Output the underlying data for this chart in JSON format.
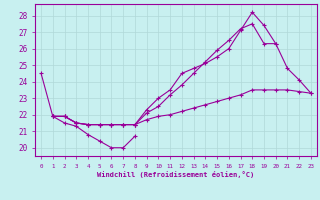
{
  "xlabel": "Windchill (Refroidissement éolien,°C)",
  "bg_color": "#c8f0f0",
  "grid_color": "#b0d8d8",
  "line_color": "#990099",
  "x_ticks": [
    0,
    1,
    2,
    3,
    4,
    5,
    6,
    7,
    8,
    9,
    10,
    11,
    12,
    13,
    14,
    15,
    16,
    17,
    18,
    19,
    20,
    21,
    22,
    23
  ],
  "ylim": [
    19.5,
    28.7
  ],
  "xlim": [
    -0.5,
    23.5
  ],
  "yticks": [
    20,
    21,
    22,
    23,
    24,
    25,
    26,
    27,
    28
  ],
  "series": [
    {
      "x": [
        0,
        1,
        2,
        3,
        4,
        5,
        6,
        7,
        8
      ],
      "y": [
        24.5,
        21.9,
        21.5,
        21.3,
        20.8,
        20.4,
        20.0,
        20.0,
        20.7
      ]
    },
    {
      "x": [
        1,
        2,
        3,
        4,
        5,
        6,
        7,
        8,
        9,
        10,
        11,
        12,
        13,
        14,
        15,
        16,
        17,
        18,
        19,
        20,
        21,
        22,
        23
      ],
      "y": [
        21.9,
        21.9,
        21.5,
        21.4,
        21.4,
        21.4,
        21.4,
        21.4,
        22.3,
        23.0,
        23.5,
        24.5,
        24.8,
        25.1,
        25.5,
        26.0,
        27.1,
        28.2,
        27.4,
        26.3,
        24.8,
        24.1,
        23.3
      ]
    },
    {
      "x": [
        1,
        2,
        3,
        4,
        5,
        6,
        7,
        8,
        9,
        10,
        11,
        12,
        13,
        14,
        15,
        16,
        17,
        18,
        19,
        20,
        21,
        22,
        23
      ],
      "y": [
        21.9,
        21.9,
        21.5,
        21.4,
        21.4,
        21.4,
        21.4,
        21.4,
        21.7,
        21.9,
        22.0,
        22.2,
        22.4,
        22.6,
        22.8,
        23.0,
        23.2,
        23.5,
        23.5,
        23.5,
        23.5,
        23.4,
        23.3
      ]
    },
    {
      "x": [
        1,
        2,
        3,
        4,
        5,
        6,
        7,
        8,
        9,
        10,
        11,
        12,
        13,
        14,
        15,
        16,
        17,
        18,
        19,
        20
      ],
      "y": [
        21.9,
        21.9,
        21.5,
        21.4,
        21.4,
        21.4,
        21.4,
        21.4,
        22.1,
        22.5,
        23.2,
        23.8,
        24.5,
        25.2,
        25.9,
        26.5,
        27.2,
        27.5,
        26.3,
        26.3
      ]
    }
  ]
}
